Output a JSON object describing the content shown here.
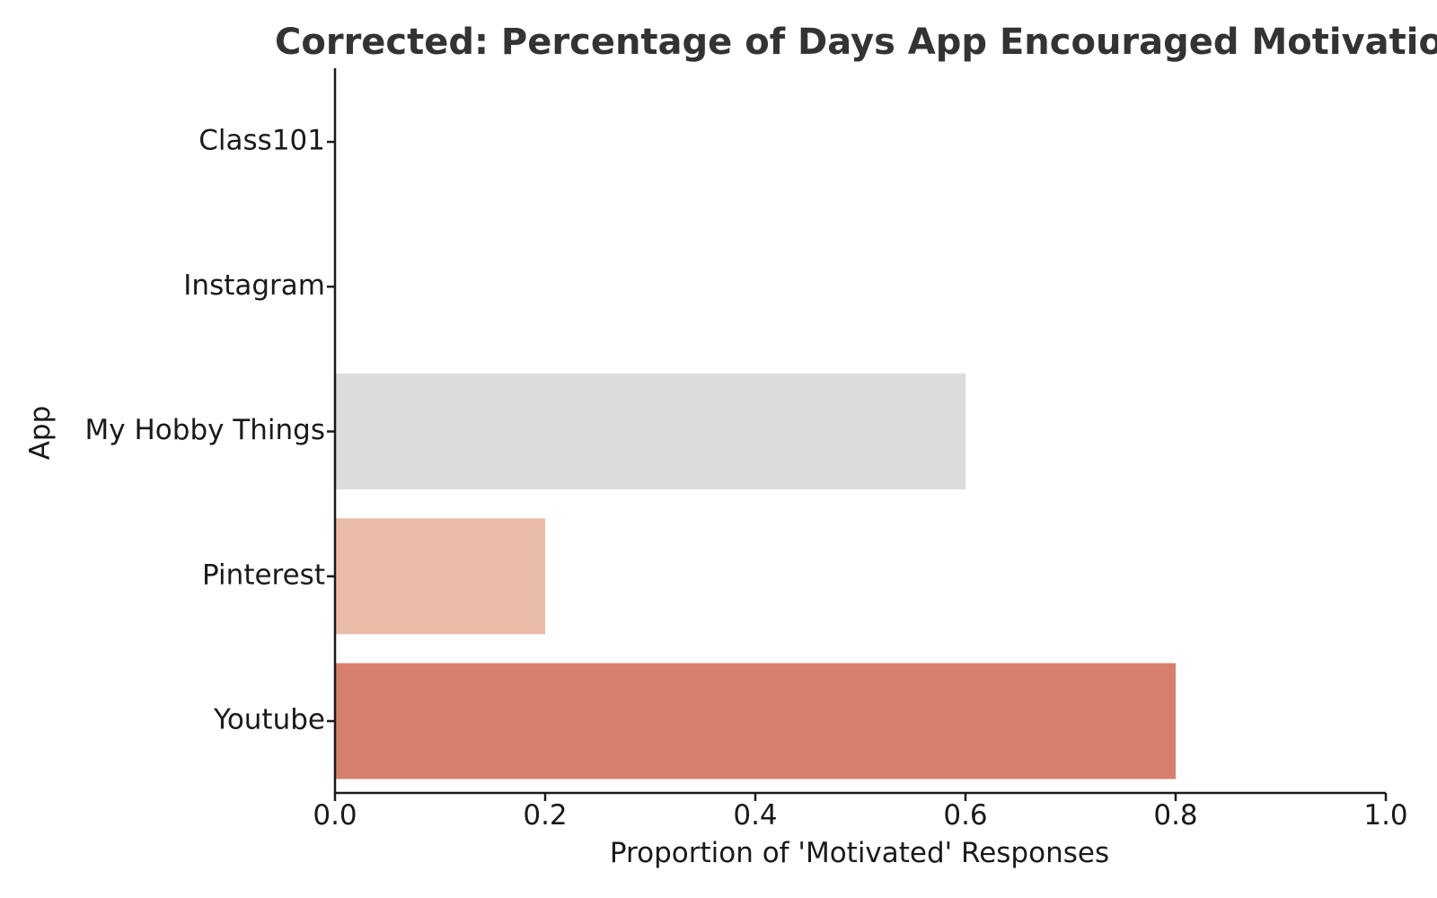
{
  "chart_data": {
    "type": "bar",
    "orientation": "horizontal",
    "title": "Corrected: Percentage of Days App Encouraged Motivation",
    "xlabel": "Proportion of 'Motivated' Responses",
    "ylabel": "App",
    "categories": [
      "Class101",
      "Instagram",
      "My Hobby Things",
      "Pinterest",
      "Youtube"
    ],
    "values": [
      0.0,
      0.0,
      0.6,
      0.2,
      0.8
    ],
    "bar_colors": [
      "#ffffff",
      "#ffffff",
      "#dcdcdc",
      "#eabca8",
      "#d67f6d"
    ],
    "xlim": [
      0.0,
      1.0
    ],
    "xticks": [
      0.0,
      0.2,
      0.4,
      0.6,
      0.8,
      1.0
    ],
    "xtick_labels": [
      "0.0",
      "0.2",
      "0.4",
      "0.6",
      "0.8",
      "1.0"
    ],
    "grid": false,
    "legend": "none"
  }
}
